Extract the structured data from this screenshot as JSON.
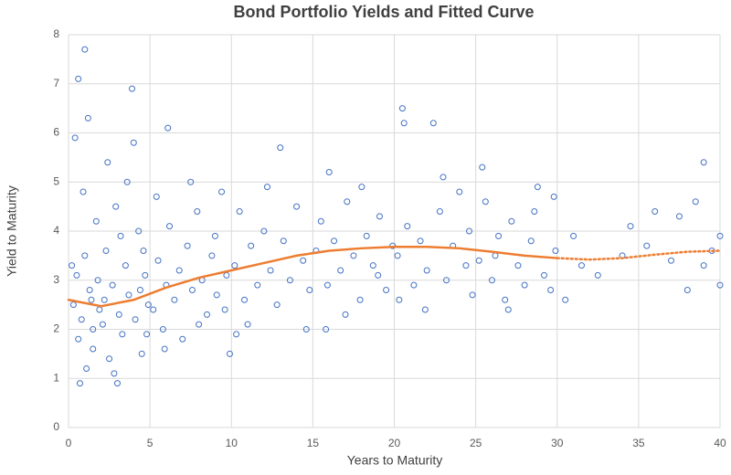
{
  "chart_data": {
    "type": "scatter",
    "title": "Bond Portfolio Yields and Fitted Curve",
    "x_label": "Years to Maturity",
    "y_label": "Yield to Maturity",
    "xlim": [
      0,
      40
    ],
    "ylim": [
      0,
      8
    ],
    "xticks": [
      0,
      5,
      10,
      15,
      20,
      25,
      30,
      35,
      40
    ],
    "yticks": [
      0,
      1,
      2,
      3,
      4,
      5,
      6,
      7,
      8
    ],
    "grid": true,
    "series": [
      {
        "color": "#4472c4",
        "style": "markers",
        "x": [
          0.3,
          0.5,
          0.6,
          0.8,
          1.0,
          1.1,
          1.3,
          1.5,
          1.7,
          1.9,
          0.4,
          0.6,
          1.0,
          0.7,
          1.2,
          1.5,
          1.8,
          0.9,
          0.2,
          1.4,
          2.1,
          2.3,
          2.5,
          2.7,
          2.9,
          3.1,
          3.3,
          3.5,
          3.7,
          3.9,
          4.1,
          4.3,
          4.5,
          4.7,
          4.9,
          2.4,
          3.0,
          3.6,
          4.4,
          2.8,
          4.0,
          2.2,
          3.2,
          4.6,
          4.8,
          5.2,
          5.5,
          5.8,
          6.0,
          6.2,
          6.5,
          6.8,
          7.0,
          7.3,
          7.6,
          7.9,
          8.2,
          8.5,
          8.8,
          9.1,
          9.4,
          9.7,
          9.9,
          6.1,
          5.4,
          8.0,
          9.0,
          7.5,
          5.9,
          9.6,
          10.2,
          10.5,
          10.8,
          11.2,
          11.6,
          12.0,
          12.4,
          12.8,
          13.2,
          13.6,
          14.0,
          14.4,
          14.8,
          13.0,
          11.0,
          12.2,
          14.6,
          10.3,
          15.2,
          15.5,
          15.9,
          16.3,
          16.7,
          17.1,
          17.5,
          17.9,
          18.3,
          18.7,
          19.1,
          19.5,
          19.9,
          16.0,
          18.0,
          17.0,
          19.0,
          15.8,
          20.2,
          20.5,
          20.8,
          21.2,
          21.6,
          22.0,
          22.4,
          22.8,
          23.2,
          23.6,
          24.0,
          24.4,
          24.8,
          20.6,
          21.9,
          23.0,
          24.6,
          20.3,
          25.2,
          25.6,
          26.0,
          26.4,
          26.8,
          27.2,
          27.6,
          28.0,
          28.4,
          28.8,
          29.2,
          29.6,
          29.9,
          25.4,
          27.0,
          28.6,
          29.8,
          26.2,
          30.5,
          31.0,
          31.5,
          32.5,
          34.0,
          34.5,
          35.5,
          36.0,
          37.0,
          37.5,
          38.0,
          38.5,
          39.0,
          39.0,
          39.5,
          40.0,
          40.0
        ],
        "values": [
          2.5,
          3.1,
          1.8,
          2.2,
          3.5,
          1.2,
          2.8,
          2.0,
          4.2,
          2.4,
          5.9,
          7.1,
          7.7,
          0.9,
          6.3,
          1.6,
          3.0,
          4.8,
          3.3,
          2.6,
          2.1,
          3.6,
          1.4,
          2.9,
          4.5,
          2.3,
          1.9,
          3.3,
          2.7,
          6.9,
          2.2,
          4.0,
          1.5,
          3.1,
          2.5,
          5.4,
          0.9,
          5.0,
          2.8,
          1.1,
          5.8,
          2.6,
          3.9,
          3.6,
          1.9,
          2.4,
          3.4,
          2.0,
          2.9,
          4.1,
          2.6,
          3.2,
          1.8,
          3.7,
          2.8,
          4.4,
          3.0,
          2.3,
          3.5,
          2.7,
          4.8,
          3.1,
          1.5,
          6.1,
          4.7,
          2.1,
          3.9,
          5.0,
          1.6,
          2.4,
          3.3,
          4.4,
          2.6,
          3.7,
          2.9,
          4.0,
          3.2,
          2.5,
          3.8,
          3.0,
          4.5,
          3.4,
          2.8,
          5.7,
          2.1,
          4.9,
          2.0,
          1.9,
          3.6,
          4.2,
          2.9,
          3.8,
          3.2,
          4.6,
          3.5,
          2.6,
          3.9,
          3.3,
          4.3,
          2.8,
          3.7,
          5.2,
          4.9,
          2.3,
          3.1,
          2.0,
          3.5,
          6.5,
          4.1,
          2.9,
          3.8,
          3.2,
          6.2,
          4.4,
          3.0,
          3.7,
          4.8,
          3.3,
          2.7,
          6.2,
          2.4,
          5.1,
          4.0,
          2.6,
          3.4,
          4.6,
          3.0,
          3.9,
          2.6,
          4.2,
          3.3,
          2.9,
          3.8,
          4.9,
          3.1,
          2.8,
          3.6,
          5.3,
          2.4,
          4.4,
          4.7,
          3.5,
          2.6,
          3.9,
          3.3,
          3.1,
          3.5,
          4.1,
          3.7,
          4.4,
          3.4,
          4.3,
          2.8,
          4.6,
          5.4,
          3.3,
          3.6,
          3.9,
          2.9
        ]
      },
      {
        "color": "#ed7d31",
        "style": "solid",
        "x": [
          0,
          2,
          4,
          6,
          8,
          10,
          12,
          14,
          16,
          18,
          20,
          22,
          24,
          26,
          28,
          30
        ],
        "values": [
          2.6,
          2.47,
          2.6,
          2.85,
          3.05,
          3.2,
          3.35,
          3.5,
          3.6,
          3.65,
          3.68,
          3.68,
          3.65,
          3.58,
          3.5,
          3.45
        ]
      },
      {
        "color": "#ed7d31",
        "style": "dotted",
        "x": [
          30,
          32,
          34,
          36,
          38,
          40
        ],
        "values": [
          3.45,
          3.42,
          3.45,
          3.52,
          3.58,
          3.6
        ]
      }
    ]
  }
}
